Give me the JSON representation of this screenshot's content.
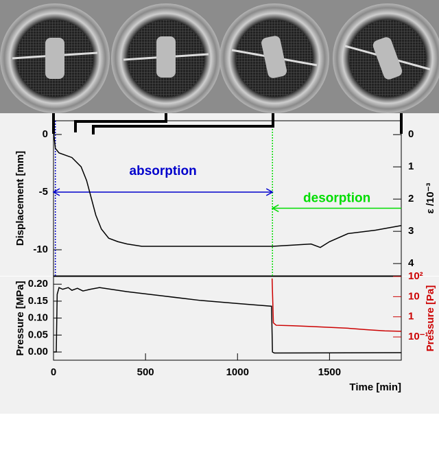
{
  "chart_data": [
    {
      "type": "line",
      "xlim": [
        0,
        1890
      ],
      "ylim": [
        -12.26,
        1.19
      ],
      "yticks": [
        0,
        -5,
        -10
      ],
      "ylabel": "Displacement [mm]",
      "y2lim": [
        4.38,
        -0.43
      ],
      "y2ticks": [
        0,
        1,
        2,
        3,
        4
      ],
      "y2label": "ε /10⁻³",
      "series": [
        {
          "color": "#000000",
          "x": [
            0,
            10,
            30,
            100,
            150,
            180,
            200,
            230,
            260,
            300,
            350,
            400,
            480,
            1190,
            1300,
            1400,
            1450,
            1500,
            1600,
            1750,
            1890
          ],
          "values": [
            0.3,
            -1.2,
            -1.6,
            -2.0,
            -2.8,
            -4.0,
            -5.2,
            -7.0,
            -8.2,
            -9.0,
            -9.3,
            -9.5,
            -9.7,
            -9.7,
            -9.6,
            -9.5,
            -9.8,
            -9.3,
            -8.6,
            -8.3,
            -7.9
          ]
        }
      ],
      "vlines": [
        {
          "x": 10,
          "color": "#0000cc"
        },
        {
          "x": 1190,
          "color": "#00dd00"
        }
      ],
      "annotations": [
        {
          "text": "absorption",
          "color": "#0000cc",
          "x": [
            0,
            1190
          ],
          "y": -5
        },
        {
          "text": "desorption",
          "color": "#00dd00",
          "x": [
            1890,
            1190
          ],
          "y": -6.4
        }
      ]
    },
    {
      "type": "line",
      "xlim": [
        0,
        1890
      ],
      "xticks": [
        0,
        500,
        1000,
        1500
      ],
      "xlabel": "Time [min]",
      "ylim": [
        -0.0242,
        0.2227
      ],
      "yticks": [
        {
          "value": 0,
          "label": "0.00"
        },
        0.05,
        {
          "value": 0.1,
          "label": "0.10"
        },
        0.15,
        {
          "value": 0.2,
          "label": "0.20"
        }
      ],
      "ylabel": "Pressure [MPa]",
      "y2lim": [
        0.007,
        100
      ],
      "y2log": true,
      "y2ticks": [
        {
          "value": 0.1,
          "label": "10⁻¹"
        },
        1,
        10,
        {
          "value": 100,
          "label": "10²"
        }
      ],
      "y2label": "Pressure [Pa]",
      "y2color": "#cc0000",
      "series": [
        {
          "color": "#000000",
          "x": [
            0,
            15,
            20,
            30,
            50,
            80,
            100,
            130,
            160,
            200,
            250,
            400,
            600,
            800,
            1000,
            1185,
            1190,
            1200,
            1890
          ],
          "values": [
            0,
            0,
            0.17,
            0.19,
            0.185,
            0.19,
            0.182,
            0.188,
            0.18,
            0.185,
            0.19,
            0.178,
            0.165,
            0.152,
            0.143,
            0.135,
            0.0,
            -0.003,
            -0.002
          ]
        },
        {
          "color": "#cc0000",
          "axis": "y2",
          "x": [
            1188,
            1195,
            1210,
            1300,
            1400,
            1500,
            1600,
            1700,
            1800,
            1890
          ],
          "values": [
            80,
            0.5,
            0.38,
            0.36,
            0.33,
            0.3,
            0.27,
            0.23,
            0.2,
            0.19
          ]
        }
      ]
    }
  ]
}
